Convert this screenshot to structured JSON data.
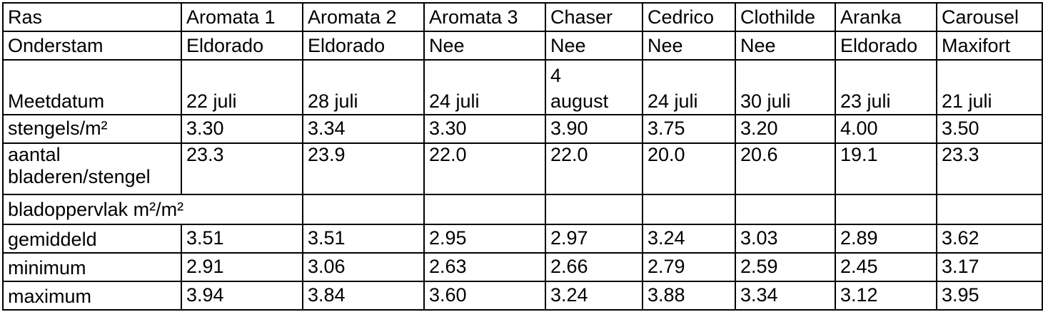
{
  "table": {
    "ras": {
      "label": "Ras",
      "values": [
        "Aromata 1",
        "Aromata 2",
        "Aromata 3",
        "Chaser",
        "Cedrico",
        "Clothilde",
        "Aranka",
        "Carousel"
      ]
    },
    "onderstam": {
      "label": "Onderstam",
      "values": [
        "Eldorado",
        "Eldorado",
        "Nee",
        "Nee",
        "Nee",
        "Nee",
        "Eldorado",
        "Maxifort"
      ]
    },
    "meetdatum": {
      "label": "Meetdatum",
      "values": [
        "22 juli",
        "28 juli",
        "24 juli",
        "4 august",
        "24 juli",
        "30 juli",
        "23 juli",
        "21 juli"
      ]
    },
    "stengels": {
      "label": "stengels/m²",
      "values": [
        "3.30",
        "3.34",
        "3.30",
        "3.90",
        "3.75",
        "3.20",
        "4.00",
        "3.50"
      ]
    },
    "aantal": {
      "label": "aantal bladeren/stengel",
      "values": [
        "23.3",
        "23.9",
        "22.0",
        "22.0",
        "20.0",
        "20.6",
        "19.1",
        "23.3"
      ]
    },
    "bladoppervlak": {
      "label": "bladoppervlak m²/m²"
    },
    "gemiddeld": {
      "label": "gemiddeld",
      "values": [
        "3.51",
        "3.51",
        "2.95",
        "2.97",
        "3.24",
        "3.03",
        "2.89",
        "3.62"
      ]
    },
    "minimum": {
      "label": "minimum",
      "values": [
        "2.91",
        "3.06",
        "2.63",
        "2.66",
        "2.79",
        "2.59",
        "2.45",
        "3.17"
      ]
    },
    "maximum": {
      "label": "maximum",
      "values": [
        "3.94",
        "3.84",
        "3.60",
        "3.24",
        "3.88",
        "3.34",
        "3.12",
        "3.95"
      ]
    }
  }
}
